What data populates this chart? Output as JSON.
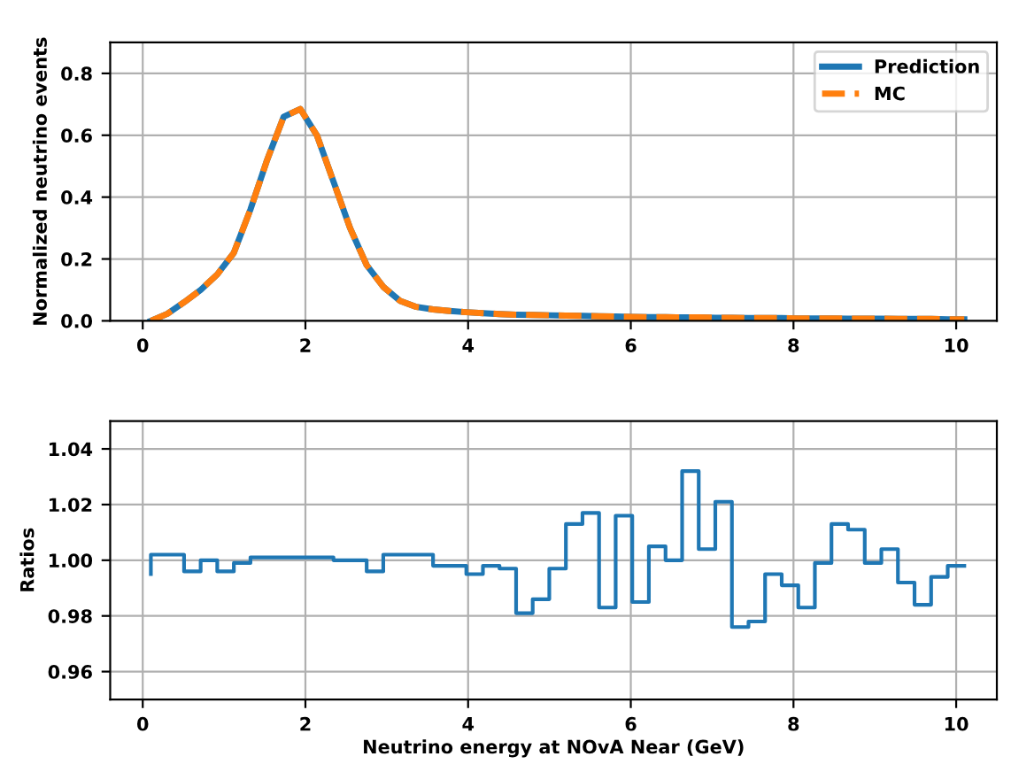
{
  "chart_data": [
    {
      "type": "line",
      "ylabel": "Normalized neutrino events",
      "x": [
        0.1,
        0.304,
        0.508,
        0.712,
        0.916,
        1.12,
        1.324,
        1.529,
        1.733,
        1.937,
        2.141,
        2.345,
        2.549,
        2.753,
        2.957,
        3.161,
        3.365,
        3.569,
        3.773,
        3.978,
        4.182,
        4.386,
        4.59,
        4.794,
        4.998,
        5.202,
        5.406,
        5.61,
        5.814,
        6.018,
        6.222,
        6.427,
        6.631,
        6.835,
        7.039,
        7.243,
        7.447,
        7.651,
        7.855,
        8.059,
        8.263,
        8.467,
        8.671,
        8.876,
        9.08,
        9.284,
        9.488,
        9.692,
        9.896,
        10.1
      ],
      "series": [
        {
          "name": "Prediction",
          "color": "#1f77b4",
          "line_style": "solid",
          "values": [
            0,
            0.023,
            0.06,
            0.1,
            0.15,
            0.22,
            0.36,
            0.52,
            0.66,
            0.685,
            0.6,
            0.45,
            0.3,
            0.18,
            0.11,
            0.065,
            0.045,
            0.037,
            0.032,
            0.028,
            0.025,
            0.022,
            0.02,
            0.019,
            0.018,
            0.017,
            0.016,
            0.015,
            0.014,
            0.013,
            0.012,
            0.012,
            0.011,
            0.011,
            0.01,
            0.01,
            0.009,
            0.009,
            0.009,
            0.008,
            0.008,
            0.008,
            0.007,
            0.007,
            0.007,
            0.006,
            0.006,
            0.006,
            0.005,
            0.005
          ]
        },
        {
          "name": "MC",
          "color": "#ff7f0e",
          "line_style": "dashed",
          "values": [
            0,
            0.023,
            0.06,
            0.1,
            0.15,
            0.22,
            0.36,
            0.52,
            0.66,
            0.685,
            0.6,
            0.45,
            0.3,
            0.18,
            0.11,
            0.065,
            0.045,
            0.037,
            0.032,
            0.028,
            0.025,
            0.022,
            0.02,
            0.019,
            0.018,
            0.017,
            0.016,
            0.015,
            0.014,
            0.013,
            0.012,
            0.012,
            0.011,
            0.011,
            0.01,
            0.01,
            0.009,
            0.009,
            0.009,
            0.008,
            0.008,
            0.008,
            0.007,
            0.007,
            0.007,
            0.006,
            0.006,
            0.006,
            0.005,
            0.005
          ]
        }
      ],
      "xlim": [
        -0.4,
        10.5
      ],
      "xticks": [
        0,
        2,
        4,
        6,
        8,
        10
      ],
      "ylim": [
        0,
        0.9
      ],
      "yticks": [
        {
          "value": 0.0,
          "label": "0.0"
        },
        {
          "value": 0.2,
          "label": "0.2"
        },
        {
          "value": 0.4,
          "label": "0.4"
        },
        {
          "value": 0.6,
          "label": "0.6"
        },
        {
          "value": 0.8,
          "label": "0.8"
        }
      ],
      "grid": true,
      "legend": "top right"
    },
    {
      "type": "step",
      "xlabel": "Neutrino energy at NOvA Near (GeV)",
      "ylabel": "Ratios",
      "x": [
        0.1,
        0.304,
        0.508,
        0.712,
        0.916,
        1.12,
        1.324,
        1.529,
        1.733,
        1.937,
        2.141,
        2.345,
        2.549,
        2.753,
        2.957,
        3.161,
        3.365,
        3.569,
        3.773,
        3.978,
        4.182,
        4.386,
        4.59,
        4.794,
        4.998,
        5.202,
        5.406,
        5.61,
        5.814,
        6.018,
        6.222,
        6.427,
        6.631,
        6.835,
        7.039,
        7.243,
        7.447,
        7.651,
        7.855,
        8.059,
        8.263,
        8.467,
        8.671,
        8.876,
        9.08,
        9.284,
        9.488,
        9.692,
        9.896,
        10.1
      ],
      "series": [
        {
          "color": "#1f77b4",
          "values": [
            0.995,
            1.002,
            1.002,
            0.996,
            1.0,
            0.996,
            0.999,
            1.001,
            1.001,
            1.001,
            1.001,
            1.001,
            1.0,
            1.0,
            0.996,
            1.002,
            1.002,
            1.002,
            0.998,
            0.998,
            0.995,
            0.998,
            0.997,
            0.981,
            0.986,
            0.997,
            1.013,
            1.017,
            0.983,
            1.016,
            0.985,
            1.005,
            1.0,
            1.032,
            1.004,
            1.021,
            0.976,
            0.978,
            0.995,
            0.991,
            0.983,
            0.999,
            1.013,
            1.011,
            0.999,
            1.004,
            0.992,
            0.984,
            0.994,
            0.998
          ]
        }
      ],
      "xlim": [
        -0.4,
        10.5
      ],
      "xticks": [
        0,
        2,
        4,
        6,
        8,
        10
      ],
      "ylim": [
        0.95,
        1.05
      ],
      "yticks": [
        {
          "value": 0.96,
          "label": "0.96"
        },
        {
          "value": 0.98,
          "label": "0.98"
        },
        {
          "value": 1.0,
          "label": "1.00"
        },
        {
          "value": 1.02,
          "label": "1.02"
        },
        {
          "value": 1.04,
          "label": "1.04"
        }
      ],
      "grid": true
    }
  ]
}
